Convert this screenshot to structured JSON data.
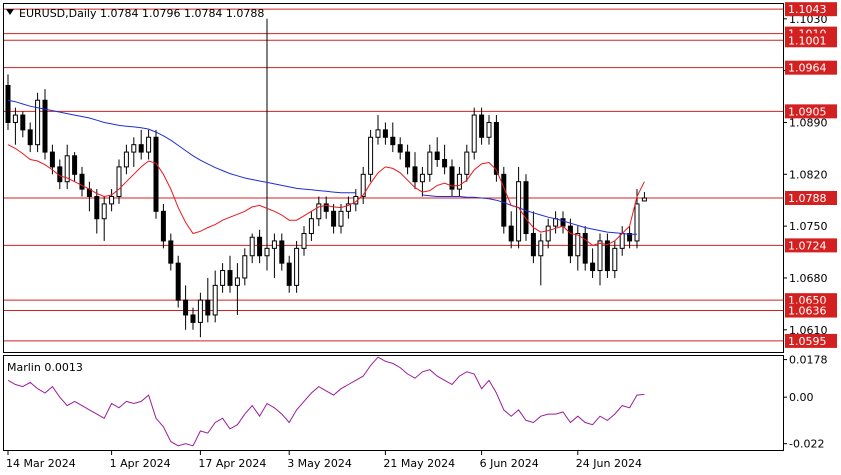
{
  "symbol_title": "EURUSD,Daily  1.0784 1.0796 1.0784 1.0788",
  "indicator_title": "Marlin 0.0013",
  "colors": {
    "bull_body": "#ffffff",
    "bear_body": "#000000",
    "ma_fast": "#e8191e",
    "ma_slow": "#1f2fd6",
    "marlin": "#9a1f9a",
    "level_line": "#d32020",
    "level_label_bg": "#d32020"
  },
  "chart_data": [
    {
      "type": "candlestick",
      "title": "EURUSD,Daily",
      "ohlc_readout": [
        "1.0784",
        "1.0796",
        "1.0784",
        "1.0788"
      ],
      "ylim": [
        1.058,
        1.105
      ],
      "price_ticks": [
        "1.1030",
        "1.0960",
        "1.0890",
        "1.0820",
        "1.0750",
        "1.0680",
        "1.0610"
      ],
      "x_tick_labels": [
        "14 Mar 2024",
        "1 Apr 2024",
        "17 Apr 2024",
        "3 May 2024",
        "21 May 2024",
        "6 Jun 2024",
        "24 Jun 2024"
      ],
      "x_tick_index": [
        0,
        14,
        26,
        38,
        51,
        64,
        77
      ],
      "levels": [
        "1.1043",
        "1.1010",
        "1.1001",
        "1.0964",
        "1.0905",
        "1.0788",
        "1.0724",
        "1.0650",
        "1.0636",
        "1.0595"
      ],
      "ohlc": [
        [
          1.094,
          1.0955,
          1.088,
          1.089
        ],
        [
          1.089,
          1.091,
          1.086,
          1.09
        ],
        [
          1.09,
          1.0905,
          1.087,
          1.088
        ],
        [
          1.088,
          1.089,
          1.085,
          1.086
        ],
        [
          1.086,
          1.093,
          1.085,
          1.092
        ],
        [
          1.092,
          1.0935,
          1.084,
          1.085
        ],
        [
          1.085,
          1.086,
          1.082,
          1.083
        ],
        [
          1.083,
          1.084,
          1.08,
          1.081
        ],
        [
          1.081,
          1.086,
          1.08,
          1.0845
        ],
        [
          1.0845,
          1.085,
          1.081,
          1.082
        ],
        [
          1.082,
          1.083,
          1.079,
          1.08
        ],
        [
          1.08,
          1.081,
          1.077,
          1.079
        ],
        [
          1.079,
          1.08,
          1.074,
          1.076
        ],
        [
          1.076,
          1.079,
          1.073,
          1.078
        ],
        [
          1.078,
          1.08,
          1.077,
          1.079
        ],
        [
          1.079,
          1.084,
          1.078,
          1.083
        ],
        [
          1.083,
          1.086,
          1.082,
          1.085
        ],
        [
          1.085,
          1.087,
          1.083,
          1.086
        ],
        [
          1.086,
          1.088,
          1.084,
          1.085
        ],
        [
          1.085,
          1.088,
          1.084,
          1.087
        ],
        [
          1.087,
          1.088,
          1.076,
          1.077
        ],
        [
          1.077,
          1.078,
          1.072,
          1.073
        ],
        [
          1.073,
          1.074,
          1.069,
          1.07
        ],
        [
          1.07,
          1.071,
          1.064,
          1.065
        ],
        [
          1.065,
          1.067,
          1.061,
          1.063
        ],
        [
          1.063,
          1.064,
          1.061,
          1.062
        ],
        [
          1.062,
          1.066,
          1.06,
          1.065
        ],
        [
          1.065,
          1.068,
          1.062,
          1.063
        ],
        [
          1.063,
          1.069,
          1.062,
          1.067
        ],
        [
          1.067,
          1.07,
          1.066,
          1.069
        ],
        [
          1.069,
          1.071,
          1.066,
          1.067
        ],
        [
          1.067,
          1.07,
          1.063,
          1.068
        ],
        [
          1.068,
          1.072,
          1.067,
          1.071
        ],
        [
          1.071,
          1.074,
          1.07,
          1.0735
        ],
        [
          1.0735,
          1.0745,
          1.07,
          1.071
        ],
        [
          1.071,
          1.103,
          1.069,
          1.072
        ],
        [
          1.072,
          1.074,
          1.068,
          1.073
        ],
        [
          1.073,
          1.074,
          1.069,
          1.07
        ],
        [
          1.07,
          1.071,
          1.066,
          1.067
        ],
        [
          1.067,
          1.073,
          1.066,
          1.072
        ],
        [
          1.072,
          1.075,
          1.071,
          1.074
        ],
        [
          1.074,
          1.077,
          1.073,
          1.076
        ],
        [
          1.076,
          1.079,
          1.075,
          1.078
        ],
        [
          1.078,
          1.079,
          1.076,
          1.077
        ],
        [
          1.077,
          1.078,
          1.074,
          1.075
        ],
        [
          1.075,
          1.078,
          1.074,
          1.077
        ],
        [
          1.077,
          1.079,
          1.076,
          1.078
        ],
        [
          1.078,
          1.08,
          1.077,
          1.079
        ],
        [
          1.079,
          1.083,
          1.078,
          1.082
        ],
        [
          1.082,
          1.088,
          1.081,
          1.087
        ],
        [
          1.087,
          1.09,
          1.086,
          1.088
        ],
        [
          1.088,
          1.089,
          1.086,
          1.087
        ],
        [
          1.087,
          1.089,
          1.085,
          1.086
        ],
        [
          1.086,
          1.087,
          1.084,
          1.085
        ],
        [
          1.085,
          1.086,
          1.082,
          1.083
        ],
        [
          1.083,
          1.085,
          1.08,
          1.081
        ],
        [
          1.081,
          1.083,
          1.079,
          1.082
        ],
        [
          1.082,
          1.086,
          1.081,
          1.085
        ],
        [
          1.085,
          1.087,
          1.083,
          1.084
        ],
        [
          1.084,
          1.086,
          1.082,
          1.083
        ],
        [
          1.083,
          1.084,
          1.079,
          1.08
        ],
        [
          1.08,
          1.083,
          1.079,
          1.082
        ],
        [
          1.082,
          1.086,
          1.081,
          1.085
        ],
        [
          1.085,
          1.091,
          1.084,
          1.09
        ],
        [
          1.09,
          1.091,
          1.086,
          1.087
        ],
        [
          1.087,
          1.09,
          1.086,
          1.089
        ],
        [
          1.089,
          1.09,
          1.081,
          1.082
        ],
        [
          1.082,
          1.083,
          1.074,
          1.075
        ],
        [
          1.075,
          1.077,
          1.072,
          1.073
        ],
        [
          1.073,
          1.083,
          1.072,
          1.081
        ],
        [
          1.081,
          1.082,
          1.073,
          1.074
        ],
        [
          1.074,
          1.077,
          1.07,
          1.071
        ],
        [
          1.071,
          1.074,
          1.067,
          1.073
        ],
        [
          1.073,
          1.076,
          1.072,
          1.075
        ],
        [
          1.075,
          1.077,
          1.074,
          1.076
        ],
        [
          1.076,
          1.077,
          1.074,
          1.075
        ],
        [
          1.075,
          1.076,
          1.07,
          1.071
        ],
        [
          1.071,
          1.075,
          1.069,
          1.074
        ],
        [
          1.074,
          1.075,
          1.069,
          1.07
        ],
        [
          1.07,
          1.072,
          1.068,
          1.069
        ],
        [
          1.069,
          1.074,
          1.067,
          1.073
        ],
        [
          1.073,
          1.074,
          1.068,
          1.069
        ],
        [
          1.069,
          1.073,
          1.068,
          1.072
        ],
        [
          1.072,
          1.075,
          1.071,
          1.074
        ],
        [
          1.074,
          1.075,
          1.072,
          1.073
        ],
        [
          1.073,
          1.08,
          1.072,
          1.078
        ],
        [
          1.0784,
          1.0796,
          1.0784,
          1.0788
        ]
      ],
      "ma_fast": [
        1.086,
        1.0855,
        1.0848,
        1.084,
        1.0838,
        1.0833,
        1.0826,
        1.0818,
        1.0815,
        1.081,
        1.0805,
        1.08,
        1.0794,
        1.079,
        1.0792,
        1.08,
        1.081,
        1.082,
        1.083,
        1.0838,
        1.0835,
        1.082,
        1.08,
        1.0775,
        1.0755,
        1.074,
        1.0743,
        1.0748,
        1.0752,
        1.0758,
        1.0762,
        1.0766,
        1.077,
        1.0776,
        1.0778,
        1.0774,
        1.077,
        1.0765,
        1.0758,
        1.0758,
        1.0764,
        1.077,
        1.0776,
        1.0778,
        1.0776,
        1.0775,
        1.0778,
        1.0783,
        1.0792,
        1.0808,
        1.0822,
        1.083,
        1.0828,
        1.0822,
        1.0812,
        1.0802,
        1.0796,
        1.0798,
        1.0805,
        1.0808,
        1.0804,
        1.0805,
        1.0812,
        1.0826,
        1.0834,
        1.0836,
        1.0826,
        1.0802,
        1.0778,
        1.0775,
        1.076,
        1.0748,
        1.0742,
        1.0744,
        1.0747,
        1.075,
        1.074,
        1.0738,
        1.0732,
        1.0724,
        1.0727,
        1.0725,
        1.073,
        1.074,
        1.075,
        1.079,
        1.081
      ],
      "ma_slow": [
        1.092,
        1.0918,
        1.0915,
        1.0912,
        1.091,
        1.0908,
        1.0906,
        1.0904,
        1.0902,
        1.09,
        1.0898,
        1.0896,
        1.0893,
        1.089,
        1.0888,
        1.0886,
        1.0885,
        1.0884,
        1.0883,
        1.0881,
        1.0877,
        1.0872,
        1.0866,
        1.0859,
        1.0852,
        1.0845,
        1.0839,
        1.0834,
        1.0829,
        1.0825,
        1.0821,
        1.0818,
        1.0815,
        1.0813,
        1.0811,
        1.0809,
        1.0807,
        1.0805,
        1.0803,
        1.0801,
        1.08,
        1.0799,
        1.0798,
        1.0797,
        1.0796,
        1.0795,
        1.0795,
        1.0795,
        null,
        null,
        null,
        null,
        null,
        null,
        null,
        null,
        1.0792,
        1.0791,
        1.079,
        1.079,
        1.079,
        1.079,
        1.0789,
        1.0789,
        1.0788,
        1.0787,
        1.0785,
        1.0782,
        1.0778,
        1.0775,
        1.0771,
        1.0768,
        1.0765,
        1.0762,
        1.076,
        1.0757,
        1.0754,
        1.0751,
        1.0748,
        1.0746,
        1.0744,
        1.0742,
        1.0741,
        1.074,
        1.0739,
        1.0739,
        null
      ],
      "ma_slow_note_gap": ""
    },
    {
      "type": "line",
      "title": "Marlin",
      "current_value": "0.0013",
      "ylim": [
        -0.025,
        0.0195
      ],
      "y_ticks": [
        "0.0178",
        "0.00",
        "-0.022"
      ],
      "series": [
        {
          "name": "Marlin",
          "values": [
            0.008,
            0.006,
            0.005,
            0.007,
            0.004,
            0.002,
            0.005,
            0.0,
            -0.004,
            -0.002,
            -0.004,
            -0.006,
            -0.008,
            -0.01,
            -0.003,
            -0.005,
            -0.002,
            -0.003,
            -0.002,
            0.001,
            -0.01,
            -0.014,
            -0.021,
            -0.023,
            -0.022,
            -0.023,
            -0.016,
            -0.017,
            -0.012,
            -0.01,
            -0.015,
            -0.013,
            -0.008,
            -0.004,
            -0.009,
            -0.003,
            -0.005,
            -0.008,
            -0.012,
            -0.006,
            -0.002,
            0.002,
            0.005,
            0.003,
            0.001,
            0.004,
            0.006,
            0.008,
            0.01,
            0.015,
            0.019,
            0.017,
            0.016,
            0.014,
            0.011,
            0.009,
            0.012,
            0.013,
            0.01,
            0.008,
            0.006,
            0.01,
            0.012,
            0.011,
            0.004,
            0.008,
            0.002,
            -0.006,
            -0.009,
            -0.006,
            -0.011,
            -0.012,
            -0.009,
            -0.008,
            -0.008,
            -0.007,
            -0.012,
            -0.009,
            -0.012,
            -0.013,
            -0.009,
            -0.011,
            -0.008,
            -0.004,
            -0.005,
            0.001,
            0.0013
          ]
        }
      ]
    }
  ]
}
